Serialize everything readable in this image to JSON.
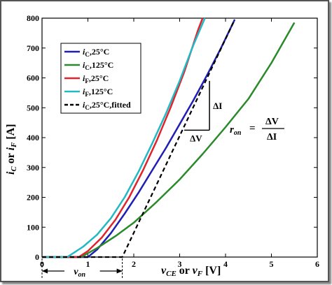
{
  "chart_data": {
    "type": "line",
    "xlabel": {
      "a": "v",
      "a_sub": "CE",
      "mid": " or ",
      "b": "v",
      "b_sub": "F",
      "unit": " [V]"
    },
    "ylabel": {
      "a": "i",
      "a_sub": "C",
      "mid": " or ",
      "b": "i",
      "b_sub": "F",
      "unit": " [A]"
    },
    "xlim": [
      0,
      6
    ],
    "ylim": [
      0,
      800
    ],
    "xticks": [
      "0",
      "1",
      "2",
      "3",
      "4",
      "5",
      "6"
    ],
    "yticks": [
      "0",
      "100",
      "200",
      "300",
      "400",
      "500",
      "600",
      "700",
      "800"
    ],
    "series": [
      {
        "name": "i_C, 25°C",
        "legend_main": "i",
        "legend_sub": "C",
        "legend_rest": ",25°C",
        "color": "#1f1fb4",
        "style": "solid",
        "x": [
          0,
          1.0,
          1.2,
          1.5,
          1.8,
          2.1,
          2.4,
          2.7,
          3.0,
          3.3,
          3.6,
          3.9,
          4.2
        ],
        "y": [
          0,
          0,
          25,
          80,
          145,
          215,
          290,
          365,
          445,
          525,
          610,
          700,
          795
        ]
      },
      {
        "name": "i_C, 125°C",
        "legend_main": "i",
        "legend_sub": "C",
        "legend_rest": ",125°C",
        "color": "#2a8a2a",
        "style": "solid",
        "x": [
          0,
          0.85,
          1.2,
          1.6,
          2.0,
          2.5,
          3.0,
          3.5,
          4.0,
          4.5,
          5.0,
          5.5
        ],
        "y": [
          0,
          0,
          30,
          70,
          115,
          185,
          260,
          345,
          435,
          530,
          650,
          785
        ]
      },
      {
        "name": "i_F, 25°C",
        "legend_main": "i",
        "legend_sub": "F",
        "legend_rest": ",25°C",
        "color": "#e0242c",
        "style": "solid",
        "x": [
          0,
          0.8,
          1.0,
          1.3,
          1.6,
          1.9,
          2.2,
          2.5,
          2.8,
          3.1,
          3.4,
          3.5
        ],
        "y": [
          0,
          0,
          20,
          65,
          125,
          200,
          290,
          390,
          500,
          620,
          760,
          800
        ]
      },
      {
        "name": "i_F, 125°C",
        "legend_main": "i",
        "legend_sub": "F",
        "legend_rest": ",125°C",
        "color": "#22b8c4",
        "style": "solid",
        "x": [
          0,
          0.55,
          0.9,
          1.2,
          1.5,
          1.8,
          2.1,
          2.4,
          2.7,
          3.0,
          3.3,
          3.55
        ],
        "y": [
          0,
          0,
          35,
          75,
          130,
          200,
          285,
          380,
          480,
          590,
          710,
          800
        ]
      },
      {
        "name": "i_C, 25°C, fitted",
        "legend_main": "i",
        "legend_sub": "C",
        "legend_rest": ",25°C,fitted",
        "color": "#000000",
        "style": "dashed",
        "x": [
          0,
          1.7,
          1.75,
          4.2
        ],
        "y": [
          0,
          0,
          0,
          795
        ]
      }
    ],
    "annotations": {
      "dI": "ΔI",
      "dV": "ΔV",
      "ron_r": "r",
      "ron_sub": "on",
      "ron_eq": "=",
      "ron_num": "ΔV",
      "ron_den": "ΔI",
      "von_v": "v",
      "von_sub": "on",
      "triangle": {
        "x1": 3.1,
        "x2": 3.65,
        "y1": 425,
        "y2": 590
      },
      "von_range": [
        0,
        1.75
      ]
    },
    "legend_position": "top-left",
    "grid": false
  }
}
